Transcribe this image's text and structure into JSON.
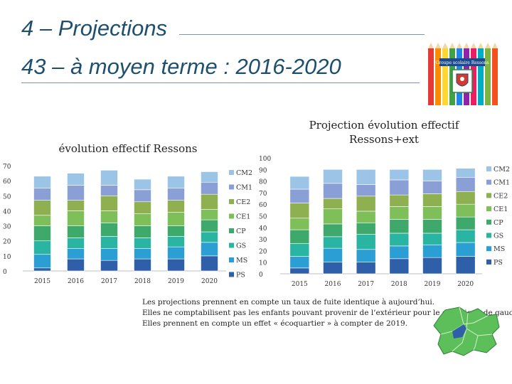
{
  "header": {
    "title1": "4 – Projections",
    "title2": "43 – à moyen terme : 2016-2020"
  },
  "logo": {
    "banner": "Groupe scolaire Ressons"
  },
  "notes": [
    "Les projections prennent en compte un taux de fuite identique à aujourd’hui.",
    "Elles ne comptabilisent pas les enfants pouvant provenir de l’extérieur pour le graphique de gauche.",
    "Elles prennent en compte un effet « écoquartier » à compter de 2019."
  ],
  "colors": {
    "PS": "#2e5fa8",
    "MS": "#2b9fd3",
    "GS": "#2ab5a3",
    "CP": "#3fa86b",
    "CE1": "#7fbf5a",
    "CE2": "#8fb050",
    "CM1": "#8a9fd6",
    "CM2": "#9bc4e6"
  },
  "chart_data": [
    {
      "type": "bar",
      "stacked": true,
      "title": "évolution effectif Ressons",
      "categories": [
        "2015",
        "2016",
        "2017",
        "2018",
        "2019",
        "2020"
      ],
      "ylim": [
        0,
        70
      ],
      "yticks": [
        0,
        10,
        20,
        30,
        40,
        50,
        60,
        70
      ],
      "grid": false,
      "legend": "right",
      "series": [
        {
          "name": "PS",
          "values": [
            2,
            8,
            7,
            8,
            8,
            10
          ]
        },
        {
          "name": "MS",
          "values": [
            9,
            7,
            8,
            7,
            8,
            9
          ]
        },
        {
          "name": "GS",
          "values": [
            9,
            7,
            8,
            7,
            7,
            7
          ]
        },
        {
          "name": "CP",
          "values": [
            10,
            8,
            9,
            8,
            7,
            8
          ]
        },
        {
          "name": "CE1",
          "values": [
            7,
            10,
            8,
            8,
            9,
            7
          ]
        },
        {
          "name": "CE2",
          "values": [
            10,
            7,
            10,
            8,
            8,
            10
          ]
        },
        {
          "name": "CM1",
          "values": [
            8,
            10,
            7,
            8,
            8,
            8
          ]
        },
        {
          "name": "CM2",
          "values": [
            8,
            8,
            10,
            7,
            8,
            7
          ]
        }
      ]
    },
    {
      "type": "bar",
      "stacked": true,
      "title": "Projection évolution effectif Ressons+ext",
      "categories": [
        "2015",
        "2016",
        "2017",
        "2018",
        "2019",
        "2020"
      ],
      "ylim": [
        0,
        100
      ],
      "yticks": [
        0,
        10,
        20,
        30,
        40,
        50,
        60,
        70,
        80,
        90,
        100
      ],
      "grid": false,
      "legend": "right",
      "series": [
        {
          "name": "PS",
          "values": [
            5,
            10,
            10,
            13,
            14,
            15
          ]
        },
        {
          "name": "MS",
          "values": [
            10,
            12,
            11,
            11,
            11,
            12
          ]
        },
        {
          "name": "GS",
          "values": [
            11,
            10,
            13,
            11,
            10,
            11
          ]
        },
        {
          "name": "CP",
          "values": [
            12,
            11,
            10,
            12,
            12,
            11
          ]
        },
        {
          "name": "CE1",
          "values": [
            10,
            13,
            10,
            11,
            11,
            11
          ]
        },
        {
          "name": "CE2",
          "values": [
            13,
            9,
            13,
            10,
            11,
            11
          ]
        },
        {
          "name": "CM1",
          "values": [
            12,
            13,
            10,
            13,
            11,
            12
          ]
        },
        {
          "name": "CM2",
          "values": [
            11,
            12,
            13,
            9,
            10,
            8
          ]
        }
      ]
    }
  ]
}
